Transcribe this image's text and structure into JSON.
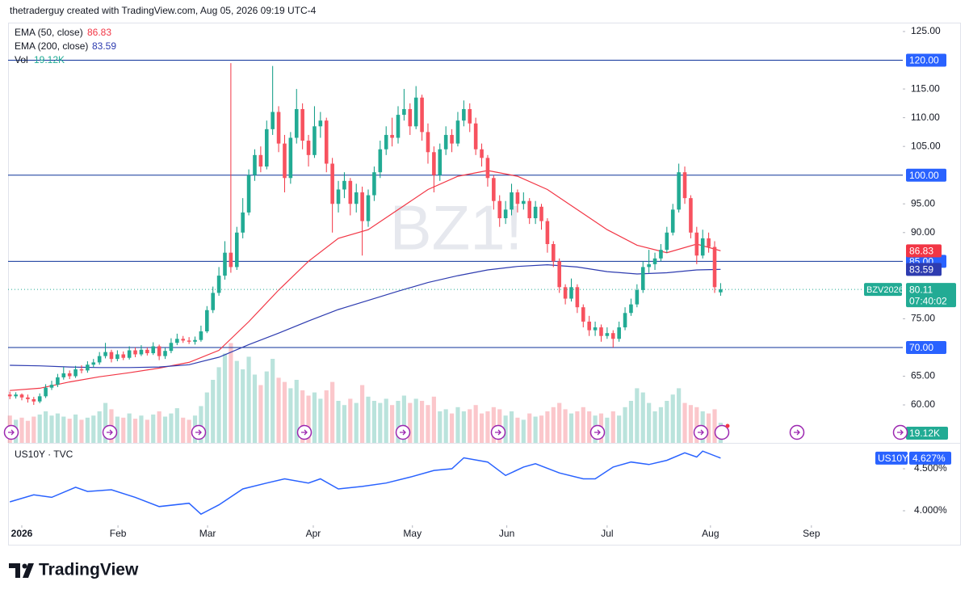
{
  "header": {
    "text": "thetraderguy created with TradingView.com, Aug 05, 2026 09:19 UTC-4"
  },
  "footer": {
    "brand": "TradingView"
  },
  "chart_data": [
    {
      "type": "candlestick",
      "watermark": "BZ1!",
      "symbol_label": "BZV2026",
      "countdown": "07:40:02",
      "up_color": "#089981",
      "down_color": "#f23645",
      "xlim": [
        -0.3,
        149.5
      ],
      "xticks": [
        {
          "value": 2,
          "label": "2026"
        },
        {
          "value": 18.1,
          "label": "Feb"
        },
        {
          "value": 33.1,
          "label": "Mar"
        },
        {
          "value": 50.8,
          "label": "Apr"
        },
        {
          "value": 67.4,
          "label": "May"
        },
        {
          "value": 83.2,
          "label": "Jun"
        },
        {
          "value": 100,
          "label": "Jul"
        },
        {
          "value": 117.3,
          "label": "Aug"
        },
        {
          "value": 134.2,
          "label": "Sep"
        }
      ],
      "ylim": [
        53.39,
        126.55
      ],
      "yticks": [
        {
          "value": 125,
          "label": "125.00"
        },
        {
          "value": 115,
          "label": "115.00"
        },
        {
          "value": 110,
          "label": "110.00"
        },
        {
          "value": 105,
          "label": "105.00"
        },
        {
          "value": 95,
          "label": "95.00"
        },
        {
          "value": 90,
          "label": "90.00"
        },
        {
          "value": 75,
          "label": "75.00"
        },
        {
          "value": 65,
          "label": "65.00"
        },
        {
          "value": 60,
          "label": "60.00"
        }
      ],
      "hlines": {
        "color": "#0c3299",
        "values": [
          {
            "value": 120,
            "label": "120.00"
          },
          {
            "value": 100,
            "label": "100.00"
          },
          {
            "value": 85,
            "label": "85.00"
          },
          {
            "value": 70,
            "label": "70.00"
          }
        ]
      },
      "ohlc": [
        [
          61.8,
          62.3,
          61.0,
          61.5
        ],
        [
          61.5,
          62.2,
          61.1,
          61.8
        ],
        [
          61.8,
          62.0,
          60.8,
          61.3
        ],
        [
          61.3,
          61.8,
          60.4,
          61.0
        ],
        [
          61.0,
          61.4,
          60.0,
          60.6
        ],
        [
          60.6,
          62.0,
          60.3,
          61.5
        ],
        [
          61.5,
          63.6,
          61.2,
          63.0
        ],
        [
          63.0,
          64.2,
          62.6,
          63.5
        ],
        [
          63.5,
          65.4,
          63.1,
          64.8
        ],
        [
          64.8,
          66.6,
          64.4,
          65.5
        ],
        [
          65.5,
          66.0,
          64.5,
          65.0
        ],
        [
          65.0,
          66.8,
          64.7,
          66.2
        ],
        [
          66.2,
          66.9,
          65.5,
          66.0
        ],
        [
          66.0,
          67.6,
          65.6,
          67.0
        ],
        [
          67.0,
          68.0,
          66.5,
          67.4
        ],
        [
          67.4,
          69.2,
          67.0,
          68.5
        ],
        [
          68.5,
          70.8,
          68.1,
          69.2
        ],
        [
          69.2,
          69.6,
          67.4,
          68.0
        ],
        [
          68.0,
          69.5,
          67.6,
          68.8
        ],
        [
          68.8,
          69.3,
          67.8,
          68.2
        ],
        [
          68.2,
          70.2,
          67.9,
          69.5
        ],
        [
          69.5,
          70.0,
          68.3,
          68.8
        ],
        [
          68.8,
          70.4,
          68.5,
          69.6
        ],
        [
          69.6,
          70.0,
          68.6,
          69.0
        ],
        [
          69.0,
          70.9,
          68.7,
          70.2
        ],
        [
          70.2,
          70.5,
          67.8,
          68.5
        ],
        [
          68.5,
          69.9,
          68.0,
          69.4
        ],
        [
          69.4,
          71.6,
          69.0,
          70.8
        ],
        [
          70.8,
          72.4,
          70.4,
          71.5
        ],
        [
          71.5,
          72.0,
          70.8,
          71.2
        ],
        [
          71.2,
          71.8,
          70.6,
          71.0
        ],
        [
          71.0,
          71.9,
          70.5,
          71.3
        ],
        [
          71.3,
          73.8,
          71.0,
          72.8
        ],
        [
          72.8,
          77.2,
          72.5,
          76.5
        ],
        [
          76.5,
          80.6,
          76.0,
          79.5
        ],
        [
          79.5,
          84.0,
          79.0,
          82.5
        ],
        [
          82.5,
          88.5,
          81.8,
          86.5
        ],
        [
          86.5,
          119.5,
          83.0,
          84.0
        ],
        [
          84.0,
          91.0,
          83.5,
          90.0
        ],
        [
          90.0,
          96.0,
          89.0,
          93.5
        ],
        [
          93.5,
          101.0,
          93.0,
          100.0
        ],
        [
          100.0,
          104.5,
          99.0,
          103.5
        ],
        [
          103.5,
          105.0,
          100.5,
          101.5
        ],
        [
          101.5,
          109.5,
          101.0,
          108.0
        ],
        [
          108.0,
          119.0,
          107.0,
          111.0
        ],
        [
          111.0,
          112.0,
          104.0,
          105.5
        ],
        [
          105.5,
          107.0,
          97.0,
          99.5
        ],
        [
          99.5,
          107.5,
          98.5,
          106.5
        ],
        [
          106.5,
          115.0,
          105.5,
          111.5
        ],
        [
          111.5,
          112.5,
          104.5,
          106.0
        ],
        [
          106.0,
          107.0,
          101.5,
          103.5
        ],
        [
          103.5,
          112.0,
          103.0,
          108.5
        ],
        [
          108.5,
          111.0,
          106.5,
          109.5
        ],
        [
          109.5,
          110.0,
          100.5,
          102.0
        ],
        [
          102.0,
          103.0,
          90.0,
          95.0
        ],
        [
          95.0,
          99.0,
          93.5,
          97.5
        ],
        [
          97.5,
          100.5,
          96.0,
          99.0
        ],
        [
          99.0,
          99.5,
          93.0,
          95.0
        ],
        [
          95.0,
          98.5,
          93.5,
          97.0
        ],
        [
          97.0,
          98.0,
          86.0,
          92.0
        ],
        [
          92.0,
          97.5,
          91.0,
          96.5
        ],
        [
          96.5,
          101.5,
          95.5,
          100.5
        ],
        [
          100.5,
          106.0,
          99.5,
          104.5
        ],
        [
          104.5,
          108.5,
          103.5,
          107.0
        ],
        [
          107.0,
          110.0,
          105.0,
          106.5
        ],
        [
          106.5,
          112.0,
          105.5,
          110.5
        ],
        [
          110.5,
          115.0,
          109.5,
          111.5
        ],
        [
          111.5,
          112.5,
          107.0,
          108.5
        ],
        [
          108.5,
          115.5,
          108.0,
          113.5
        ],
        [
          113.5,
          114.0,
          106.0,
          107.5
        ],
        [
          107.5,
          109.0,
          102.0,
          104.0
        ],
        [
          104.0,
          105.0,
          97.0,
          100.0
        ],
        [
          100.0,
          105.5,
          99.0,
          104.5
        ],
        [
          104.5,
          108.5,
          103.5,
          107.0
        ],
        [
          107.0,
          108.0,
          104.0,
          105.5
        ],
        [
          105.5,
          111.0,
          105.0,
          109.5
        ],
        [
          109.5,
          113.0,
          108.5,
          111.5
        ],
        [
          111.5,
          112.5,
          107.5,
          109.0
        ],
        [
          109.0,
          110.0,
          103.5,
          104.5
        ],
        [
          104.5,
          105.5,
          101.5,
          103.0
        ],
        [
          103.0,
          103.5,
          98.0,
          99.5
        ],
        [
          99.5,
          100.0,
          94.0,
          95.5
        ],
        [
          95.5,
          96.5,
          91.0,
          92.5
        ],
        [
          92.5,
          95.5,
          91.5,
          94.0
        ],
        [
          94.0,
          98.5,
          93.0,
          97.0
        ],
        [
          97.0,
          97.5,
          93.5,
          95.0
        ],
        [
          95.0,
          97.0,
          94.0,
          95.5
        ],
        [
          95.5,
          96.0,
          91.5,
          92.5
        ],
        [
          92.5,
          95.5,
          91.5,
          94.5
        ],
        [
          94.5,
          95.0,
          90.5,
          92.0
        ],
        [
          92.0,
          92.5,
          86.5,
          88.0
        ],
        [
          88.0,
          88.5,
          84.0,
          85.0
        ],
        [
          85.0,
          85.5,
          79.5,
          80.5
        ],
        [
          80.5,
          81.0,
          77.5,
          78.5
        ],
        [
          78.5,
          82.0,
          78.0,
          80.5
        ],
        [
          80.5,
          81.0,
          76.0,
          77.0
        ],
        [
          77.0,
          77.5,
          73.5,
          74.5
        ],
        [
          74.5,
          75.5,
          72.0,
          73.0
        ],
        [
          73.0,
          74.5,
          72.0,
          73.5
        ],
        [
          73.5,
          74.0,
          71.0,
          72.0
        ],
        [
          72.0,
          73.5,
          71.5,
          72.5
        ],
        [
          72.5,
          73.0,
          70.0,
          71.5
        ],
        [
          71.5,
          74.5,
          71.0,
          73.5
        ],
        [
          73.5,
          77.0,
          73.0,
          76.0
        ],
        [
          76.0,
          78.5,
          75.5,
          77.5
        ],
        [
          77.5,
          81.0,
          77.0,
          80.0
        ],
        [
          80.0,
          85.0,
          79.5,
          84.0
        ],
        [
          84.0,
          87.0,
          83.0,
          84.5
        ],
        [
          84.5,
          86.5,
          83.5,
          85.5
        ],
        [
          85.5,
          88.0,
          85.0,
          87.0
        ],
        [
          87.0,
          91.0,
          86.5,
          90.0
        ],
        [
          90.0,
          95.0,
          89.5,
          94.0
        ],
        [
          94.0,
          102.0,
          93.5,
          100.5
        ],
        [
          100.5,
          101.5,
          95.0,
          96.0
        ],
        [
          96.0,
          96.5,
          89.0,
          90.0
        ],
        [
          90.0,
          91.0,
          84.5,
          86.0
        ],
        [
          86.0,
          90.5,
          85.5,
          89.0
        ],
        [
          89.0,
          90.0,
          86.5,
          87.5
        ],
        [
          87.5,
          88.5,
          79.5,
          80.5
        ],
        [
          79.6,
          81.2,
          79.0,
          80.11
        ]
      ],
      "volume": {
        "name": "Vol",
        "last_label": "19.12K",
        "vlim": [
          0,
          400000
        ],
        "values": [
          26000,
          22000,
          24000,
          21000,
          25000,
          27000,
          30000,
          26000,
          28000,
          25000,
          23000,
          27000,
          22000,
          24000,
          26000,
          30000,
          38000,
          32000,
          25000,
          24000,
          28000,
          23000,
          26000,
          22000,
          27000,
          30000,
          25000,
          28000,
          33000,
          24000,
          22000,
          26000,
          35000,
          48000,
          60000,
          72000,
          85000,
          95000,
          78000,
          70000,
          82000,
          65000,
          55000,
          68000,
          80000,
          62000,
          58000,
          52000,
          60000,
          50000,
          45000,
          48000,
          42000,
          50000,
          58000,
          40000,
          36000,
          42000,
          38000,
          55000,
          44000,
          40000,
          38000,
          42000,
          36000,
          40000,
          45000,
          38000,
          42000,
          40000,
          36000,
          44000,
          30000,
          32000,
          28000,
          34000,
          30000,
          32000,
          36000,
          28000,
          30000,
          34000,
          32000,
          26000,
          30000,
          24000,
          22000,
          28000,
          25000,
          26000,
          30000,
          34000,
          38000,
          32000,
          28000,
          30000,
          34000,
          30000,
          26000,
          28000,
          24000,
          30000,
          26000,
          34000,
          40000,
          52000,
          48000,
          38000,
          30000,
          34000,
          40000,
          46000,
          52000,
          38000,
          36000,
          34000,
          30000,
          28000,
          32000,
          19120
        ]
      },
      "series": [
        {
          "name": "EMA (50, close)",
          "color": "#f23645",
          "x": [
            0,
            5,
            10,
            15,
            20,
            25,
            30,
            35,
            40,
            45,
            50,
            55,
            60,
            65,
            70,
            75,
            80,
            85,
            90,
            95,
            100,
            105,
            110,
            115,
            119
          ],
          "values": [
            62.5,
            62.9,
            64.0,
            64.9,
            65.6,
            66.4,
            67.4,
            69.5,
            74.5,
            80.0,
            85.0,
            89.0,
            90.5,
            94.0,
            97.5,
            99.8,
            100.8,
            99.8,
            97.5,
            94.0,
            90.5,
            87.8,
            86.5,
            88.0,
            86.83
          ]
        },
        {
          "name": "EMA (200, close)",
          "color": "#2e3cb0",
          "x": [
            0,
            5,
            10,
            15,
            20,
            25,
            30,
            35,
            40,
            45,
            50,
            55,
            60,
            65,
            70,
            75,
            80,
            85,
            90,
            95,
            100,
            105,
            110,
            115,
            119
          ],
          "values": [
            66.9,
            66.8,
            66.6,
            66.5,
            66.5,
            66.6,
            67.0,
            68.3,
            70.5,
            72.5,
            74.6,
            76.6,
            78.2,
            79.8,
            81.3,
            82.5,
            83.5,
            84.1,
            84.4,
            84.0,
            83.2,
            82.8,
            83.0,
            83.5,
            83.59
          ]
        }
      ]
    },
    {
      "type": "line",
      "title": "US10Y · TVC",
      "ylim": [
        3.827,
        4.808
      ],
      "yticks": [
        {
          "value": 4.5,
          "label": "4.500%"
        },
        {
          "value": 4.0,
          "label": "4.000%"
        }
      ],
      "series": [
        {
          "name": "US10Y",
          "color": "#2962ff",
          "last_label": "4.627%",
          "x": [
            0,
            4,
            7,
            11,
            13,
            17,
            21,
            25,
            30,
            32,
            35,
            39,
            43,
            46,
            50,
            52,
            55,
            59,
            63,
            67,
            71,
            74,
            76,
            80,
            83,
            86,
            88,
            92,
            96,
            98,
            101,
            104,
            107,
            110,
            113,
            115,
            116,
            119
          ],
          "values": [
            4.106,
            4.19,
            4.16,
            4.28,
            4.23,
            4.25,
            4.16,
            4.05,
            4.09,
            3.96,
            4.07,
            4.26,
            4.33,
            4.38,
            4.33,
            4.38,
            4.26,
            4.29,
            4.33,
            4.4,
            4.48,
            4.5,
            4.63,
            4.58,
            4.42,
            4.52,
            4.56,
            4.45,
            4.38,
            4.38,
            4.52,
            4.58,
            4.55,
            4.6,
            4.69,
            4.64,
            4.71,
            4.627
          ]
        }
      ]
    }
  ]
}
